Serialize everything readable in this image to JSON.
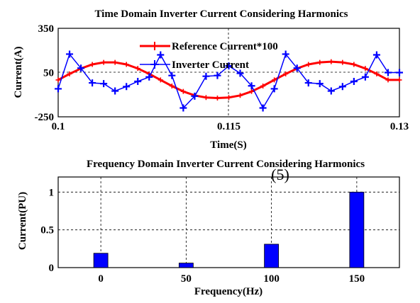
{
  "chart_data": [
    {
      "type": "line",
      "title": "Time Domain Inverter Current Considering Harmonics",
      "xlabel": "Time(S)",
      "ylabel": "Current(A)",
      "xlim": [
        0.1,
        0.13
      ],
      "ylim": [
        -250,
        350
      ],
      "xticks": [
        "0.1",
        "0.115",
        "0.13"
      ],
      "yticks": [
        "350",
        "50",
        "-250"
      ],
      "grid": "dashed-center",
      "legend_position": "top-center",
      "series": [
        {
          "name": "Reference Current*100",
          "color": "#ff0000",
          "marker": "plus",
          "x": [
            0.1,
            0.101,
            0.102,
            0.103,
            0.104,
            0.105,
            0.106,
            0.107,
            0.108,
            0.109,
            0.11,
            0.111,
            0.112,
            0.113,
            0.114,
            0.115,
            0.116,
            0.117,
            0.118,
            0.119,
            0.12,
            0.121,
            0.122,
            0.123,
            0.124,
            0.125,
            0.126,
            0.127,
            0.128,
            0.129,
            0.13
          ],
          "y": [
            0,
            41,
            78,
            105,
            119,
            119,
            105,
            78,
            41,
            0,
            -41,
            -78,
            -105,
            -119,
            -123,
            -119,
            -105,
            -78,
            -41,
            0,
            41,
            78,
            105,
            119,
            124,
            119,
            105,
            78,
            41,
            0,
            0
          ]
        },
        {
          "name": "Inverter Current",
          "color": "#0000ff",
          "marker": "plus",
          "x": [
            0.1,
            0.101,
            0.102,
            0.103,
            0.104,
            0.105,
            0.106,
            0.107,
            0.108,
            0.109,
            0.11,
            0.111,
            0.112,
            0.113,
            0.114,
            0.115,
            0.116,
            0.117,
            0.118,
            0.119,
            0.12,
            0.121,
            0.122,
            0.123,
            0.124,
            0.125,
            0.126,
            0.127,
            0.128,
            0.129,
            0.13
          ],
          "y": [
            -60,
            175,
            80,
            -20,
            -25,
            -75,
            -45,
            -10,
            20,
            170,
            30,
            -190,
            -110,
            25,
            30,
            95,
            45,
            -40,
            -190,
            -60,
            175,
            80,
            -20,
            -25,
            -75,
            -45,
            -10,
            20,
            170,
            50,
            50
          ]
        }
      ]
    },
    {
      "type": "bar",
      "title": "Frequency Domain Inverter Current Considering Harmonics",
      "xlabel": "Frequency(Hz)",
      "ylabel": "Current(PU)",
      "categories": [
        "0",
        "50",
        "100",
        "150"
      ],
      "values": [
        0.19,
        0.06,
        0.31,
        1.0
      ],
      "ylim": [
        0,
        1.2
      ],
      "yticks": [
        "0",
        "0.5",
        "1"
      ],
      "color": "#0000ff",
      "grid": "dashed",
      "annotation": "(5)"
    }
  ]
}
